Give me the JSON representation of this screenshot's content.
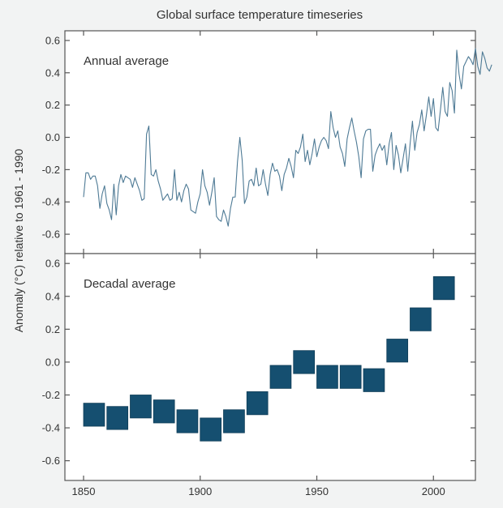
{
  "chart_data": {
    "type": "line",
    "title": "Global surface temperature timeseries",
    "ylabel": "Anomaly (°C) relative to 1961 - 1990",
    "xlabel": "",
    "xlim": [
      1842,
      2018
    ],
    "x_ticks": [
      1850,
      1900,
      1950,
      2000
    ],
    "colors": {
      "line": "#4e7a95",
      "box": "#154f70",
      "box_border": "#0f3d57"
    },
    "panels": [
      {
        "name": "annual",
        "label": "Annual average",
        "type": "line",
        "ylim": [
          -0.72,
          0.66
        ],
        "y_ticks": [
          -0.6,
          -0.4,
          -0.2,
          0.0,
          0.2,
          0.4,
          0.6
        ],
        "y_tick_labels": [
          "-0.6",
          "-0.4",
          "-0.2",
          "0.0",
          "0.2",
          "0.4",
          "0.6"
        ],
        "series": [
          {
            "name": "Annual average",
            "start_year": 1850,
            "values": [
              -0.37,
              -0.22,
              -0.22,
              -0.26,
              -0.24,
              -0.24,
              -0.3,
              -0.44,
              -0.35,
              -0.3,
              -0.41,
              -0.45,
              -0.51,
              -0.29,
              -0.48,
              -0.3,
              -0.23,
              -0.28,
              -0.24,
              -0.25,
              -0.26,
              -0.31,
              -0.25,
              -0.29,
              -0.33,
              -0.39,
              -0.38,
              0.02,
              0.07,
              -0.23,
              -0.24,
              -0.2,
              -0.27,
              -0.32,
              -0.39,
              -0.37,
              -0.35,
              -0.39,
              -0.38,
              -0.2,
              -0.39,
              -0.34,
              -0.4,
              -0.33,
              -0.29,
              -0.32,
              -0.45,
              -0.46,
              -0.47,
              -0.4,
              -0.35,
              -0.2,
              -0.3,
              -0.34,
              -0.42,
              -0.34,
              -0.25,
              -0.49,
              -0.51,
              -0.52,
              -0.45,
              -0.49,
              -0.55,
              -0.44,
              -0.37,
              -0.37,
              -0.15,
              0.0,
              -0.14,
              -0.41,
              -0.37,
              -0.27,
              -0.26,
              -0.3,
              -0.19,
              -0.3,
              -0.29,
              -0.2,
              -0.29,
              -0.36,
              -0.23,
              -0.16,
              -0.21,
              -0.2,
              -0.24,
              -0.33,
              -0.23,
              -0.19,
              -0.13,
              -0.18,
              -0.25,
              -0.08,
              -0.1,
              -0.06,
              0.02,
              -0.15,
              -0.08,
              -0.17,
              -0.1,
              -0.01,
              -0.12,
              -0.06,
              -0.02,
              0.0,
              -0.02,
              -0.07,
              0.16,
              0.06,
              0.0,
              0.04,
              -0.06,
              -0.1,
              -0.18,
              -0.01,
              0.06,
              0.12,
              0.04,
              -0.03,
              -0.12,
              -0.25,
              -0.01,
              0.04,
              0.05,
              0.05,
              -0.21,
              -0.11,
              -0.07,
              -0.04,
              -0.08,
              -0.05,
              -0.17,
              -0.04,
              0.03,
              -0.2,
              -0.05,
              -0.11,
              -0.22,
              -0.13,
              -0.04,
              -0.21,
              -0.04,
              0.1,
              -0.08,
              0.03,
              0.08,
              0.17,
              0.04,
              0.14,
              0.25,
              0.13,
              0.24,
              0.06,
              0.04,
              0.17,
              0.31,
              0.16,
              0.13,
              0.34,
              0.29,
              0.15,
              0.54,
              0.39,
              0.3,
              0.44,
              0.47,
              0.5,
              0.48,
              0.45,
              0.55,
              0.44,
              0.39,
              0.53,
              0.49,
              0.43,
              0.41,
              0.45
            ]
          }
        ]
      },
      {
        "name": "decadal",
        "label": "Decadal average",
        "type": "box",
        "ylim": [
          -0.72,
          0.66
        ],
        "y_ticks": [
          -0.6,
          -0.4,
          -0.2,
          0.0,
          0.2,
          0.4,
          0.6
        ],
        "y_tick_labels": [
          "-0.6",
          "-0.4",
          "-0.2",
          "0.0",
          "0.2",
          "0.4",
          "0.6"
        ],
        "decades": [
          {
            "center": 1854.5,
            "value": -0.32,
            "uncertainty": 0.07
          },
          {
            "center": 1864.5,
            "value": -0.34,
            "uncertainty": 0.07
          },
          {
            "center": 1874.5,
            "value": -0.27,
            "uncertainty": 0.07
          },
          {
            "center": 1884.5,
            "value": -0.3,
            "uncertainty": 0.07
          },
          {
            "center": 1894.5,
            "value": -0.36,
            "uncertainty": 0.07
          },
          {
            "center": 1904.5,
            "value": -0.41,
            "uncertainty": 0.07
          },
          {
            "center": 1914.5,
            "value": -0.36,
            "uncertainty": 0.07
          },
          {
            "center": 1924.5,
            "value": -0.25,
            "uncertainty": 0.07
          },
          {
            "center": 1934.5,
            "value": -0.09,
            "uncertainty": 0.07
          },
          {
            "center": 1944.5,
            "value": 0.0,
            "uncertainty": 0.07
          },
          {
            "center": 1954.5,
            "value": -0.09,
            "uncertainty": 0.07
          },
          {
            "center": 1964.5,
            "value": -0.09,
            "uncertainty": 0.07
          },
          {
            "center": 1974.5,
            "value": -0.11,
            "uncertainty": 0.07
          },
          {
            "center": 1984.5,
            "value": 0.07,
            "uncertainty": 0.07
          },
          {
            "center": 1994.5,
            "value": 0.26,
            "uncertainty": 0.07
          },
          {
            "center": 2004.5,
            "value": 0.45,
            "uncertainty": 0.07
          }
        ]
      }
    ]
  }
}
